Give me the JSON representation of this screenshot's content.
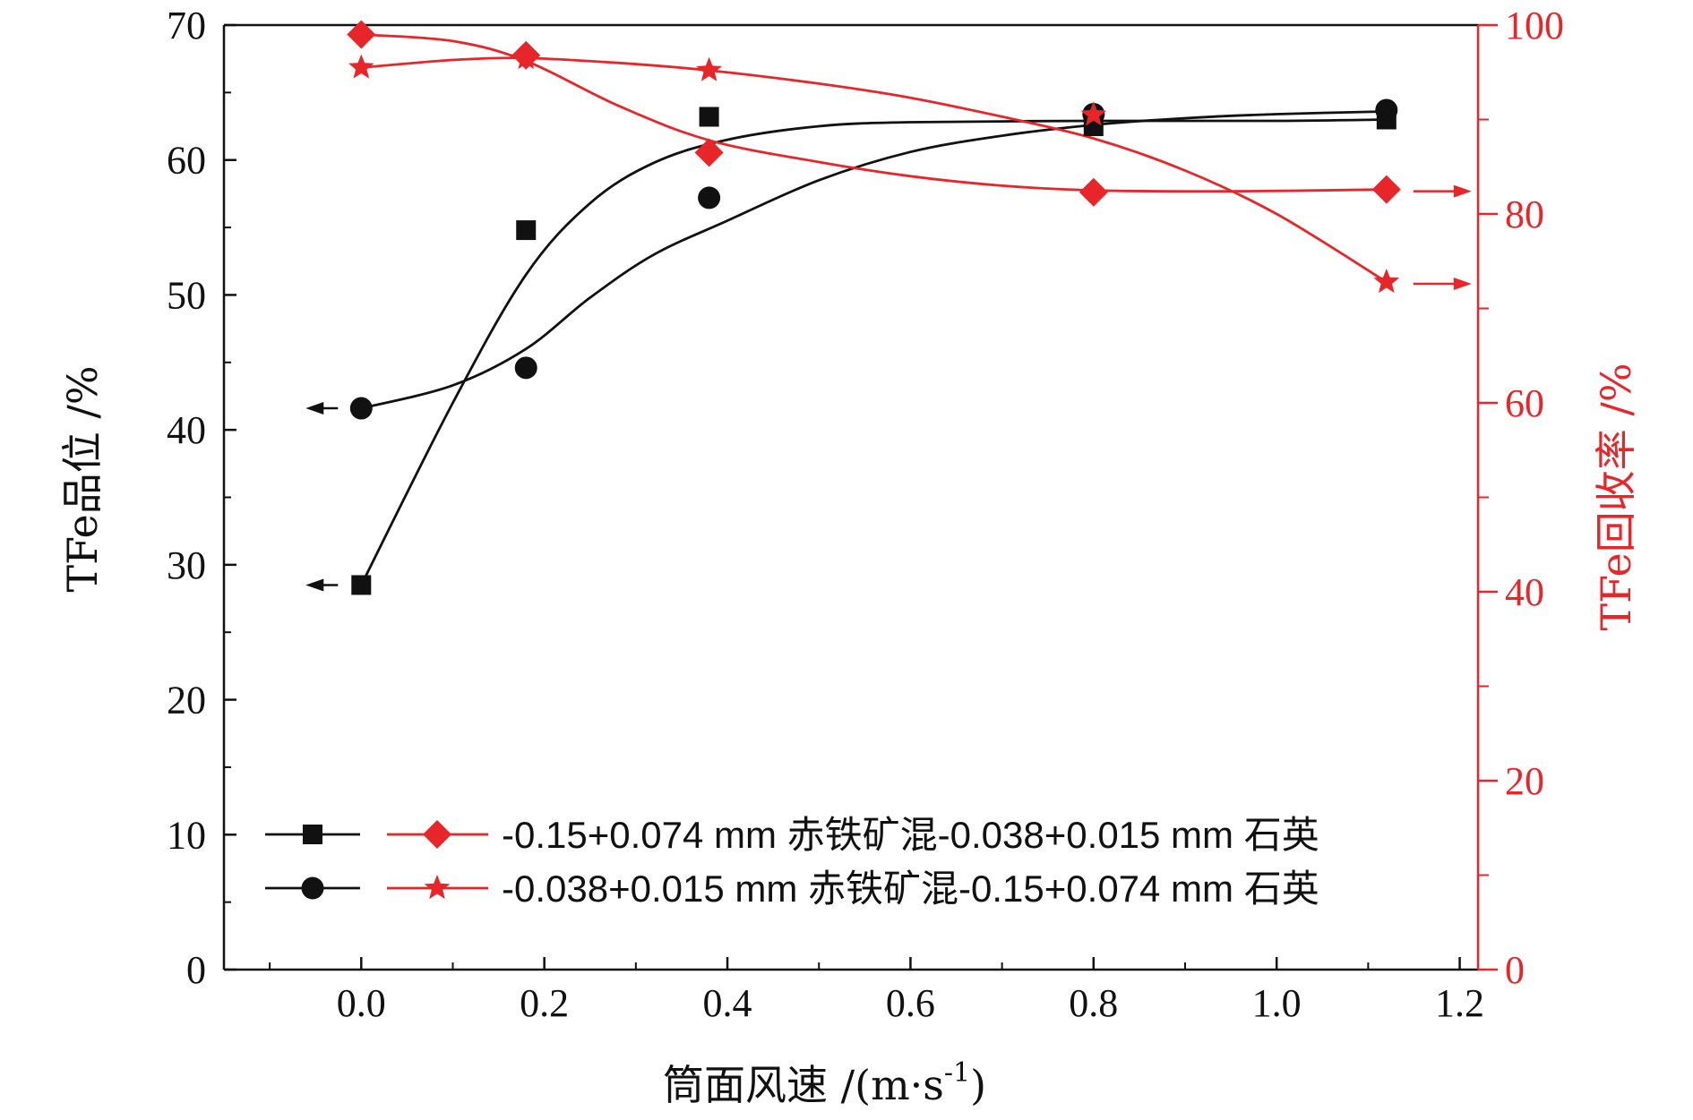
{
  "chart_data": {
    "type": "scatter",
    "xlabel": "筒面风速 /(m·s",
    "xlabel_sup": "-1",
    "xlabel_close": ")",
    "ylabel_left": "TFe品位 /%",
    "ylabel_right": "TFe回收率 /%",
    "xlim": [
      -0.15,
      1.22
    ],
    "xticks": [
      "0.0",
      "0.2",
      "0.4",
      "0.6",
      "0.8",
      "1.0",
      "1.2"
    ],
    "ylim_left": [
      0,
      70
    ],
    "yticks_left": [
      "0",
      "10",
      "20",
      "30",
      "40",
      "50",
      "60",
      "70"
    ],
    "ylim_right": [
      0,
      100
    ],
    "yticks_right": [
      "0",
      "20",
      "40",
      "60",
      "80",
      "100"
    ],
    "colors": {
      "black": "#111111",
      "red": "#e8262a"
    },
    "series": [
      {
        "name": "-0.15+0.074 mm 赤铁矿混-0.038+0.015 mm 石英",
        "axis": "left",
        "marker": "square",
        "color": "#111111",
        "x": [
          0.0,
          0.18,
          0.38,
          0.8,
          1.12
        ],
        "y": [
          28.5,
          54.8,
          63.2,
          62.5,
          63.0
        ],
        "fit": [
          [
            0.0,
            28.5
          ],
          [
            0.1,
            42.0
          ],
          [
            0.18,
            51.5
          ],
          [
            0.25,
            56.8
          ],
          [
            0.32,
            59.8
          ],
          [
            0.4,
            61.5
          ],
          [
            0.5,
            62.5
          ],
          [
            0.6,
            62.8
          ],
          [
            0.8,
            62.9
          ],
          [
            1.0,
            62.9
          ],
          [
            1.12,
            63.0
          ]
        ]
      },
      {
        "name": "-0.038+0.015 mm 赤铁矿混-0.15+0.074 mm 石英",
        "axis": "left",
        "marker": "circle",
        "color": "#111111",
        "x": [
          0.0,
          0.18,
          0.38,
          0.8,
          1.12
        ],
        "y": [
          41.6,
          44.6,
          57.2,
          63.4,
          63.7
        ],
        "fit": [
          [
            0.0,
            41.6
          ],
          [
            0.1,
            43.3
          ],
          [
            0.18,
            46.0
          ],
          [
            0.25,
            49.8
          ],
          [
            0.32,
            53.0
          ],
          [
            0.4,
            55.5
          ],
          [
            0.5,
            58.5
          ],
          [
            0.6,
            60.6
          ],
          [
            0.7,
            61.8
          ],
          [
            0.8,
            62.6
          ],
          [
            0.9,
            63.1
          ],
          [
            1.0,
            63.4
          ],
          [
            1.12,
            63.6
          ]
        ]
      },
      {
        "name": "-0.15+0.074 mm 赤铁矿混-0.038+0.015 mm 石英",
        "axis": "right",
        "marker": "diamond",
        "color": "#e8262a",
        "x": [
          0.0,
          0.18,
          0.38,
          0.8,
          1.12
        ],
        "y": [
          99.0,
          96.8,
          86.5,
          82.3,
          82.6
        ],
        "fit": [
          [
            0.0,
            99.0
          ],
          [
            0.1,
            98.3
          ],
          [
            0.18,
            96.2
          ],
          [
            0.28,
            91.5
          ],
          [
            0.38,
            87.8
          ],
          [
            0.5,
            85.5
          ],
          [
            0.6,
            84.0
          ],
          [
            0.7,
            83.0
          ],
          [
            0.8,
            82.5
          ],
          [
            0.95,
            82.4
          ],
          [
            1.12,
            82.6
          ]
        ]
      },
      {
        "name": "-0.038+0.015 mm 赤铁矿混-0.15+0.074 mm 石英",
        "axis": "right",
        "marker": "star",
        "color": "#e8262a",
        "x": [
          0.0,
          0.18,
          0.38,
          0.8,
          1.12
        ],
        "y": [
          95.5,
          96.5,
          95.2,
          90.5,
          72.8
        ],
        "fit": [
          [
            0.0,
            95.5
          ],
          [
            0.1,
            96.3
          ],
          [
            0.18,
            96.5
          ],
          [
            0.28,
            96.0
          ],
          [
            0.38,
            95.2
          ],
          [
            0.5,
            93.8
          ],
          [
            0.6,
            92.3
          ],
          [
            0.7,
            90.3
          ],
          [
            0.8,
            88.0
          ],
          [
            0.9,
            84.6
          ],
          [
            1.0,
            80.0
          ],
          [
            1.12,
            72.8
          ]
        ]
      }
    ],
    "direction_arrows": [
      {
        "series": 0,
        "side": "left"
      },
      {
        "series": 1,
        "side": "left"
      },
      {
        "series": 2,
        "side": "right"
      },
      {
        "series": 3,
        "side": "right"
      }
    ]
  }
}
